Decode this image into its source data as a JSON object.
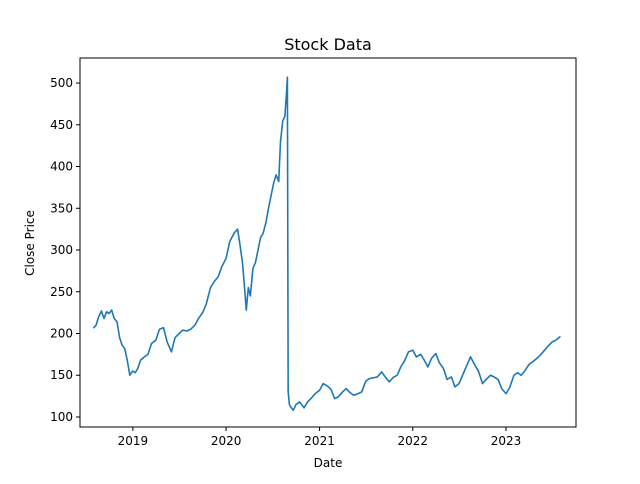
{
  "chart_data": {
    "type": "line",
    "title": "Stock Data",
    "xlabel": "Date",
    "ylabel": "Close Price",
    "xlim": [
      "2018-06-08",
      "2023-10-02"
    ],
    "ylim": [
      88,
      530
    ],
    "x_ticks": [
      {
        "date": "2019-01-01",
        "label": "2019"
      },
      {
        "date": "2020-01-01",
        "label": "2020"
      },
      {
        "date": "2021-01-01",
        "label": "2021"
      },
      {
        "date": "2022-01-01",
        "label": "2022"
      },
      {
        "date": "2023-01-01",
        "label": "2023"
      }
    ],
    "y_ticks": [
      100,
      150,
      200,
      250,
      300,
      350,
      400,
      450,
      500
    ],
    "grid": false,
    "legend": "none",
    "color": "#1f77b4",
    "series": [
      {
        "points": [
          [
            "2018-08-01",
            207
          ],
          [
            "2018-08-10",
            210
          ],
          [
            "2018-08-20",
            220
          ],
          [
            "2018-08-31",
            227
          ],
          [
            "2018-09-10",
            218
          ],
          [
            "2018-09-20",
            226
          ],
          [
            "2018-09-30",
            224
          ],
          [
            "2018-10-10",
            228
          ],
          [
            "2018-10-20",
            218
          ],
          [
            "2018-10-31",
            214
          ],
          [
            "2018-11-10",
            195
          ],
          [
            "2018-11-20",
            186
          ],
          [
            "2018-11-30",
            182
          ],
          [
            "2018-12-10",
            168
          ],
          [
            "2018-12-20",
            150
          ],
          [
            "2018-12-31",
            155
          ],
          [
            "2019-01-10",
            153
          ],
          [
            "2019-01-20",
            158
          ],
          [
            "2019-01-31",
            168
          ],
          [
            "2019-02-15",
            172
          ],
          [
            "2019-03-01",
            175
          ],
          [
            "2019-03-15",
            188
          ],
          [
            "2019-04-01",
            192
          ],
          [
            "2019-04-15",
            205
          ],
          [
            "2019-05-01",
            207
          ],
          [
            "2019-05-15",
            190
          ],
          [
            "2019-06-01",
            178
          ],
          [
            "2019-06-15",
            195
          ],
          [
            "2019-07-01",
            200
          ],
          [
            "2019-07-15",
            204
          ],
          [
            "2019-08-01",
            203
          ],
          [
            "2019-08-15",
            205
          ],
          [
            "2019-09-01",
            210
          ],
          [
            "2019-09-15",
            218
          ],
          [
            "2019-10-01",
            225
          ],
          [
            "2019-10-15",
            235
          ],
          [
            "2019-11-01",
            255
          ],
          [
            "2019-11-15",
            262
          ],
          [
            "2019-12-01",
            268
          ],
          [
            "2019-12-15",
            280
          ],
          [
            "2020-01-01",
            290
          ],
          [
            "2020-01-15",
            310
          ],
          [
            "2020-02-01",
            320
          ],
          [
            "2020-02-15",
            325
          ],
          [
            "2020-02-25",
            305
          ],
          [
            "2020-03-05",
            285
          ],
          [
            "2020-03-12",
            260
          ],
          [
            "2020-03-20",
            228
          ],
          [
            "2020-03-28",
            255
          ],
          [
            "2020-04-05",
            245
          ],
          [
            "2020-04-15",
            278
          ],
          [
            "2020-04-25",
            285
          ],
          [
            "2020-05-05",
            300
          ],
          [
            "2020-05-15",
            315
          ],
          [
            "2020-05-25",
            320
          ],
          [
            "2020-06-05",
            333
          ],
          [
            "2020-06-15",
            350
          ],
          [
            "2020-06-25",
            365
          ],
          [
            "2020-07-05",
            380
          ],
          [
            "2020-07-15",
            390
          ],
          [
            "2020-07-25",
            382
          ],
          [
            "2020-08-01",
            430
          ],
          [
            "2020-08-10",
            455
          ],
          [
            "2020-08-18",
            460
          ],
          [
            "2020-08-25",
            490
          ],
          [
            "2020-08-28",
            507
          ],
          [
            "2020-08-31",
            130
          ],
          [
            "2020-09-05",
            115
          ],
          [
            "2020-09-10",
            112
          ],
          [
            "2020-09-20",
            108
          ],
          [
            "2020-10-01",
            115
          ],
          [
            "2020-10-15",
            118
          ],
          [
            "2020-11-01",
            111
          ],
          [
            "2020-11-15",
            118
          ],
          [
            "2020-12-01",
            123
          ],
          [
            "2020-12-15",
            128
          ],
          [
            "2021-01-01",
            132
          ],
          [
            "2021-01-15",
            140
          ],
          [
            "2021-02-01",
            137
          ],
          [
            "2021-02-15",
            133
          ],
          [
            "2021-03-01",
            122
          ],
          [
            "2021-03-15",
            124
          ],
          [
            "2021-04-01",
            130
          ],
          [
            "2021-04-15",
            134
          ],
          [
            "2021-05-01",
            129
          ],
          [
            "2021-05-15",
            126
          ],
          [
            "2021-06-01",
            128
          ],
          [
            "2021-06-15",
            130
          ],
          [
            "2021-07-01",
            143
          ],
          [
            "2021-07-15",
            146
          ],
          [
            "2021-08-01",
            147
          ],
          [
            "2021-08-15",
            148
          ],
          [
            "2021-09-01",
            154
          ],
          [
            "2021-09-15",
            148
          ],
          [
            "2021-10-01",
            142
          ],
          [
            "2021-10-15",
            147
          ],
          [
            "2021-11-01",
            150
          ],
          [
            "2021-11-15",
            160
          ],
          [
            "2021-12-01",
            168
          ],
          [
            "2021-12-15",
            178
          ],
          [
            "2022-01-01",
            180
          ],
          [
            "2022-01-15",
            172
          ],
          [
            "2022-02-01",
            175
          ],
          [
            "2022-02-15",
            168
          ],
          [
            "2022-03-01",
            160
          ],
          [
            "2022-03-15",
            170
          ],
          [
            "2022-04-01",
            176
          ],
          [
            "2022-04-15",
            165
          ],
          [
            "2022-05-01",
            158
          ],
          [
            "2022-05-15",
            145
          ],
          [
            "2022-06-01",
            148
          ],
          [
            "2022-06-15",
            136
          ],
          [
            "2022-07-01",
            140
          ],
          [
            "2022-07-15",
            150
          ],
          [
            "2022-08-01",
            162
          ],
          [
            "2022-08-15",
            172
          ],
          [
            "2022-09-01",
            162
          ],
          [
            "2022-09-15",
            155
          ],
          [
            "2022-10-01",
            140
          ],
          [
            "2022-10-15",
            145
          ],
          [
            "2022-11-01",
            150
          ],
          [
            "2022-11-15",
            148
          ],
          [
            "2022-12-01",
            145
          ],
          [
            "2022-12-15",
            134
          ],
          [
            "2023-01-01",
            128
          ],
          [
            "2023-01-15",
            135
          ],
          [
            "2023-02-01",
            150
          ],
          [
            "2023-02-15",
            153
          ],
          [
            "2023-03-01",
            150
          ],
          [
            "2023-03-15",
            155
          ],
          [
            "2023-04-01",
            163
          ],
          [
            "2023-04-15",
            166
          ],
          [
            "2023-05-01",
            170
          ],
          [
            "2023-05-15",
            174
          ],
          [
            "2023-06-01",
            180
          ],
          [
            "2023-06-15",
            185
          ],
          [
            "2023-07-01",
            190
          ],
          [
            "2023-07-15",
            192
          ],
          [
            "2023-07-31",
            196
          ]
        ]
      }
    ]
  }
}
